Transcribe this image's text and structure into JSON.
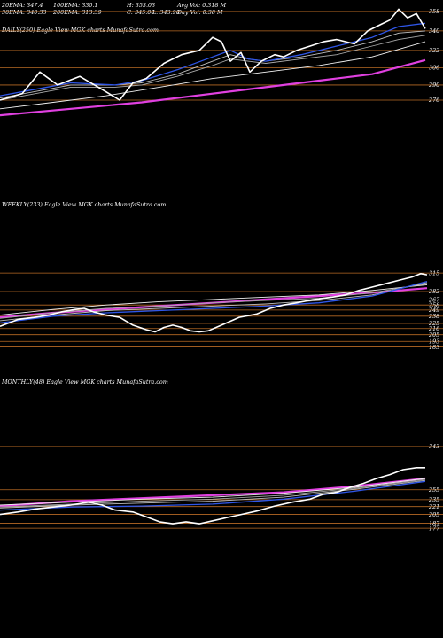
{
  "colors": {
    "background": "#000000",
    "price": "#ffffff",
    "ema20": "#2f56e8",
    "ema30": "#c0c0c0",
    "ema50": "#a9a9a9",
    "ema100": "#f0f0f0",
    "ema200": "#e040e0",
    "level_line": "#b86a24"
  },
  "header": {
    "row1": [
      "20EMA: 347.4",
      "100EMA: 330.1",
      "H: 353.03",
      "Avg Vol: 0.318  M"
    ],
    "row2": [
      "30EMA: 340.33",
      "200EMA: 313.39",
      "C: 345.00",
      "L: 343.90",
      "Day Vol: 0.38  M"
    ]
  },
  "chart_data": [
    {
      "type": "line",
      "title": "DAILY(250) Eagle  View  MGK charts MunafaSutra.com",
      "levels": [
        358,
        340,
        322,
        306,
        290,
        276
      ],
      "series": [
        {
          "name": "price",
          "points": [
            [
              0,
              276
            ],
            [
              25,
              282
            ],
            [
              45,
              302
            ],
            [
              65,
              290
            ],
            [
              90,
              298
            ],
            [
              115,
              286
            ],
            [
              135,
              276
            ],
            [
              150,
              292
            ],
            [
              165,
              296
            ],
            [
              185,
              310
            ],
            [
              205,
              318
            ],
            [
              225,
              322
            ],
            [
              240,
              334
            ],
            [
              250,
              330
            ],
            [
              260,
              312
            ],
            [
              272,
              320
            ],
            [
              282,
              302
            ],
            [
              295,
              312
            ],
            [
              310,
              318
            ],
            [
              320,
              316
            ],
            [
              335,
              322
            ],
            [
              350,
              326
            ],
            [
              365,
              330
            ],
            [
              380,
              332
            ],
            [
              400,
              328
            ],
            [
              415,
              340
            ],
            [
              430,
              346
            ],
            [
              440,
              350
            ],
            [
              450,
              360
            ],
            [
              460,
              352
            ],
            [
              470,
              356
            ],
            [
              480,
              342
            ]
          ]
        },
        {
          "name": "ema20",
          "points": [
            [
              0,
              280
            ],
            [
              40,
              286
            ],
            [
              80,
              292
            ],
            [
              130,
              290
            ],
            [
              160,
              294
            ],
            [
              200,
              304
            ],
            [
              240,
              316
            ],
            [
              260,
              322
            ],
            [
              280,
              314
            ],
            [
              300,
              312
            ],
            [
              340,
              318
            ],
            [
              380,
              326
            ],
            [
              420,
              334
            ],
            [
              450,
              344
            ],
            [
              480,
              347
            ]
          ]
        },
        {
          "name": "ema30",
          "points": [
            [
              0,
              278
            ],
            [
              40,
              284
            ],
            [
              80,
              290
            ],
            [
              130,
              290
            ],
            [
              160,
              292
            ],
            [
              200,
              300
            ],
            [
              240,
              312
            ],
            [
              260,
              318
            ],
            [
              280,
              314
            ],
            [
              300,
              312
            ],
            [
              340,
              316
            ],
            [
              380,
              322
            ],
            [
              420,
              330
            ],
            [
              450,
              338
            ],
            [
              480,
              340
            ]
          ]
        },
        {
          "name": "ema50",
          "points": [
            [
              0,
              276
            ],
            [
              40,
              282
            ],
            [
              80,
              288
            ],
            [
              130,
              288
            ],
            [
              160,
              290
            ],
            [
              200,
              298
            ],
            [
              240,
              308
            ],
            [
              260,
              314
            ],
            [
              280,
              312
            ],
            [
              300,
              310
            ],
            [
              340,
              314
            ],
            [
              380,
              318
            ],
            [
              420,
              326
            ],
            [
              450,
              332
            ],
            [
              480,
              336
            ]
          ]
        },
        {
          "name": "ema100",
          "points": [
            [
              0,
              268
            ],
            [
              60,
              274
            ],
            [
              120,
              280
            ],
            [
              180,
              288
            ],
            [
              240,
              296
            ],
            [
              300,
              302
            ],
            [
              360,
              308
            ],
            [
              420,
              316
            ],
            [
              480,
              330
            ]
          ]
        },
        {
          "name": "ema200",
          "points": [
            [
              0,
              262
            ],
            [
              80,
              268
            ],
            [
              160,
              274
            ],
            [
              240,
              282
            ],
            [
              300,
              288
            ],
            [
              360,
              294
            ],
            [
              420,
              300
            ],
            [
              480,
              313
            ]
          ]
        }
      ]
    },
    {
      "type": "line",
      "title": "WEEKLY(233) Eagle  View  MGK charts MunafaSutra.com",
      "levels": [
        315,
        282,
        267,
        258,
        249,
        238,
        225,
        216,
        205,
        193,
        183
      ],
      "series": [
        {
          "name": "price",
          "points": [
            [
              0,
              220
            ],
            [
              20,
              232
            ],
            [
              40,
              236
            ],
            [
              55,
              240
            ],
            [
              70,
              246
            ],
            [
              85,
              250
            ],
            [
              95,
              252
            ],
            [
              105,
              246
            ],
            [
              120,
              240
            ],
            [
              135,
              236
            ],
            [
              150,
              222
            ],
            [
              165,
              214
            ],
            [
              175,
              210
            ],
            [
              185,
              218
            ],
            [
              195,
              222
            ],
            [
              205,
              218
            ],
            [
              215,
              212
            ],
            [
              225,
              210
            ],
            [
              235,
              212
            ],
            [
              250,
              222
            ],
            [
              270,
              236
            ],
            [
              290,
              242
            ],
            [
              305,
              252
            ],
            [
              320,
              258
            ],
            [
              335,
              262
            ],
            [
              355,
              268
            ],
            [
              375,
              272
            ],
            [
              390,
              276
            ],
            [
              405,
              284
            ],
            [
              420,
              290
            ],
            [
              435,
              296
            ],
            [
              450,
              302
            ],
            [
              465,
              308
            ],
            [
              475,
              314
            ],
            [
              482,
              312
            ]
          ]
        },
        {
          "name": "ema20",
          "points": [
            [
              0,
              226
            ],
            [
              60,
              238
            ],
            [
              120,
              244
            ],
            [
              180,
              248
            ],
            [
              240,
              252
            ],
            [
              300,
              256
            ],
            [
              360,
              262
            ],
            [
              420,
              274
            ],
            [
              482,
              300
            ]
          ]
        },
        {
          "name": "ema30",
          "points": [
            [
              0,
              230
            ],
            [
              60,
              240
            ],
            [
              120,
              248
            ],
            [
              180,
              252
            ],
            [
              240,
              256
            ],
            [
              300,
              260
            ],
            [
              360,
              266
            ],
            [
              420,
              276
            ],
            [
              482,
              298
            ]
          ]
        },
        {
          "name": "ema50",
          "points": [
            [
              0,
              234
            ],
            [
              60,
              244
            ],
            [
              120,
              252
            ],
            [
              180,
              256
            ],
            [
              240,
              262
            ],
            [
              300,
              266
            ],
            [
              360,
              270
            ],
            [
              420,
              280
            ],
            [
              482,
              296
            ]
          ]
        },
        {
          "name": "ema100",
          "points": [
            [
              0,
              240
            ],
            [
              60,
              250
            ],
            [
              120,
              258
            ],
            [
              180,
              264
            ],
            [
              240,
              268
            ],
            [
              300,
              272
            ],
            [
              360,
              276
            ],
            [
              420,
              284
            ],
            [
              482,
              294
            ]
          ]
        },
        {
          "name": "ema200",
          "points": [
            [
              0,
              236
            ],
            [
              60,
              244
            ],
            [
              120,
              250
            ],
            [
              180,
              256
            ],
            [
              240,
              262
            ],
            [
              300,
              268
            ],
            [
              360,
              274
            ],
            [
              420,
              280
            ],
            [
              482,
              288
            ]
          ]
        }
      ]
    },
    {
      "type": "line",
      "title": "MONTHLY(48) Eagle  View  MGK charts MunafaSutra.com",
      "levels": [
        343,
        255,
        235,
        221,
        205,
        187,
        177
      ],
      "series": [
        {
          "name": "price",
          "points": [
            [
              0,
              205
            ],
            [
              20,
              210
            ],
            [
              40,
              216
            ],
            [
              60,
              220
            ],
            [
              80,
              224
            ],
            [
              100,
              230
            ],
            [
              115,
              224
            ],
            [
              130,
              214
            ],
            [
              150,
              210
            ],
            [
              165,
              200
            ],
            [
              180,
              190
            ],
            [
              195,
              186
            ],
            [
              210,
              190
            ],
            [
              225,
              186
            ],
            [
              240,
              192
            ],
            [
              255,
              198
            ],
            [
              270,
              204
            ],
            [
              290,
              212
            ],
            [
              310,
              222
            ],
            [
              330,
              230
            ],
            [
              350,
              236
            ],
            [
              365,
              246
            ],
            [
              380,
              250
            ],
            [
              395,
              260
            ],
            [
              410,
              268
            ],
            [
              425,
              278
            ],
            [
              440,
              286
            ],
            [
              455,
              296
            ],
            [
              470,
              300
            ],
            [
              480,
              300
            ]
          ]
        },
        {
          "name": "ema20",
          "points": [
            [
              0,
              214
            ],
            [
              80,
              220
            ],
            [
              160,
              222
            ],
            [
              240,
              226
            ],
            [
              320,
              236
            ],
            [
              400,
              252
            ],
            [
              480,
              272
            ]
          ]
        },
        {
          "name": "ema30",
          "points": [
            [
              0,
              218
            ],
            [
              80,
              224
            ],
            [
              160,
              228
            ],
            [
              240,
              232
            ],
            [
              320,
              240
            ],
            [
              400,
              256
            ],
            [
              480,
              274
            ]
          ]
        },
        {
          "name": "ema50",
          "points": [
            [
              0,
              220
            ],
            [
              80,
              226
            ],
            [
              160,
              232
            ],
            [
              240,
              236
            ],
            [
              320,
              244
            ],
            [
              400,
              258
            ],
            [
              480,
              276
            ]
          ]
        },
        {
          "name": "ema100",
          "points": [
            [
              0,
              224
            ],
            [
              80,
              230
            ],
            [
              160,
              236
            ],
            [
              240,
              240
            ],
            [
              320,
              248
            ],
            [
              400,
              260
            ],
            [
              480,
              278
            ]
          ]
        },
        {
          "name": "ema200",
          "points": [
            [
              0,
              222
            ],
            [
              80,
              232
            ],
            [
              160,
              238
            ],
            [
              240,
              244
            ],
            [
              320,
              250
            ],
            [
              400,
              262
            ],
            [
              480,
              278
            ]
          ]
        }
      ]
    }
  ]
}
